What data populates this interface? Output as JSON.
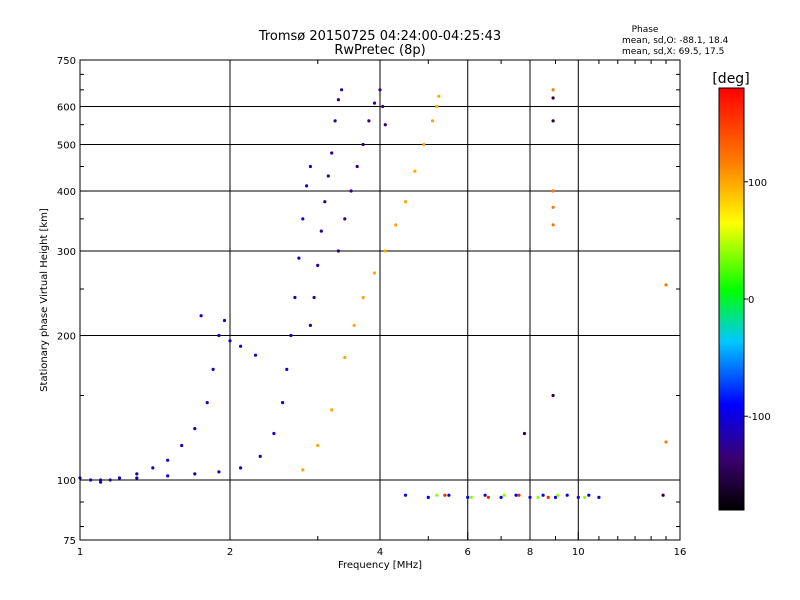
{
  "chart_data": {
    "type": "scatter",
    "title": "Tromsø 20150725 04:24:00-04:25:43",
    "subtitle": "RwPretec (8p)",
    "xlabel": "Frequency [MHz]",
    "ylabel": "Stationary phase Virtual Height [km]",
    "x_scale": "log",
    "y_scale": "log",
    "xlim": [
      1,
      16
    ],
    "ylim": [
      75,
      750
    ],
    "x_ticks": [
      1,
      2,
      4,
      6,
      8,
      10,
      16
    ],
    "x_tick_labels": [
      "1",
      "2",
      "4",
      "6",
      "8",
      "10",
      "16"
    ],
    "y_ticks": [
      75,
      100,
      200,
      300,
      400,
      500,
      600,
      750
    ],
    "y_tick_labels": [
      "75",
      "100",
      "200",
      "300",
      "400",
      "500",
      "600",
      "750"
    ],
    "grid": true,
    "phase_stats": {
      "header": "Phase",
      "line_o": "mean, sd,O:  -88.1, 18.4",
      "line_x": "mean, sd,X:  69.5, 17.5"
    },
    "colorbar": {
      "label": "[deg]",
      "range": [
        -180,
        180
      ],
      "ticks": [
        100,
        0,
        -100
      ],
      "tick_labels": [
        "100",
        "0",
        "-100"
      ]
    },
    "series": [
      {
        "phase_deg": -110,
        "points": [
          [
            1.0,
            101
          ],
          [
            1.05,
            100
          ],
          [
            1.1,
            99
          ],
          [
            1.15,
            100
          ],
          [
            1.2,
            101
          ],
          [
            1.3,
            103
          ],
          [
            1.4,
            106
          ],
          [
            1.5,
            110
          ],
          [
            1.6,
            118
          ],
          [
            1.7,
            128
          ],
          [
            1.8,
            145
          ],
          [
            1.85,
            170
          ],
          [
            1.9,
            200
          ],
          [
            1.95,
            215
          ],
          [
            1.75,
            220
          ],
          [
            2.0,
            195
          ],
          [
            2.1,
            190
          ],
          [
            2.25,
            182
          ]
        ]
      },
      {
        "phase_deg": -110,
        "points": [
          [
            1.1,
            100
          ],
          [
            1.3,
            101
          ],
          [
            1.5,
            102
          ],
          [
            1.7,
            103
          ],
          [
            1.9,
            104
          ],
          [
            2.1,
            106
          ],
          [
            2.3,
            112
          ],
          [
            2.45,
            125
          ],
          [
            2.55,
            145
          ],
          [
            2.6,
            170
          ],
          [
            2.65,
            200
          ],
          [
            2.7,
            240
          ],
          [
            2.75,
            290
          ],
          [
            2.8,
            350
          ],
          [
            2.85,
            410
          ],
          [
            2.9,
            450
          ]
        ]
      },
      {
        "phase_deg": -125,
        "points": [
          [
            2.9,
            210
          ],
          [
            2.95,
            240
          ],
          [
            3.0,
            280
          ],
          [
            3.05,
            330
          ],
          [
            3.1,
            380
          ],
          [
            3.15,
            430
          ],
          [
            3.2,
            480
          ],
          [
            3.25,
            560
          ],
          [
            3.3,
            620
          ],
          [
            3.35,
            650
          ]
        ]
      },
      {
        "phase_deg": -130,
        "points": [
          [
            3.3,
            300
          ],
          [
            3.4,
            350
          ],
          [
            3.5,
            400
          ],
          [
            3.6,
            450
          ],
          [
            3.7,
            500
          ],
          [
            3.8,
            560
          ],
          [
            3.9,
            610
          ],
          [
            4.0,
            650
          ],
          [
            4.05,
            600
          ],
          [
            4.1,
            550
          ]
        ]
      },
      {
        "phase_deg": 100,
        "points": [
          [
            2.8,
            105
          ],
          [
            3.0,
            118
          ],
          [
            3.2,
            140
          ],
          [
            3.4,
            180
          ],
          [
            3.55,
            210
          ],
          [
            3.7,
            240
          ],
          [
            3.9,
            270
          ],
          [
            4.1,
            300
          ],
          [
            4.3,
            340
          ],
          [
            4.5,
            380
          ],
          [
            4.7,
            440
          ],
          [
            4.9,
            500
          ],
          [
            5.1,
            560
          ],
          [
            5.2,
            600
          ],
          [
            5.25,
            630
          ]
        ]
      },
      {
        "phase_deg": 120,
        "points": [
          [
            8.9,
            650
          ],
          [
            8.9,
            400
          ],
          [
            8.9,
            370
          ],
          [
            8.9,
            340
          ],
          [
            15.0,
            255
          ],
          [
            15.0,
            120
          ]
        ]
      },
      {
        "phase_deg": -100,
        "points": [
          [
            4.5,
            93
          ],
          [
            5.0,
            92
          ],
          [
            5.5,
            93
          ],
          [
            6.0,
            92
          ],
          [
            6.5,
            93
          ],
          [
            7.0,
            92
          ],
          [
            7.5,
            93
          ],
          [
            8.0,
            92
          ],
          [
            8.5,
            93
          ],
          [
            9.0,
            92
          ],
          [
            9.5,
            93
          ],
          [
            10.0,
            92
          ],
          [
            10.5,
            93
          ],
          [
            11.0,
            92
          ]
        ]
      },
      {
        "phase_deg": 40,
        "points": [
          [
            5.2,
            93
          ],
          [
            6.1,
            92
          ],
          [
            7.1,
            93
          ],
          [
            8.3,
            92
          ],
          [
            9.1,
            93
          ],
          [
            10.3,
            92
          ]
        ]
      },
      {
        "phase_deg": 160,
        "points": [
          [
            5.4,
            93
          ],
          [
            6.6,
            92
          ],
          [
            7.6,
            93
          ],
          [
            8.7,
            92
          ]
        ]
      },
      {
        "phase_deg": -150,
        "points": [
          [
            8.9,
            625
          ],
          [
            8.9,
            560
          ],
          [
            8.9,
            150
          ],
          [
            7.8,
            125
          ],
          [
            14.8,
            93
          ]
        ]
      }
    ]
  }
}
